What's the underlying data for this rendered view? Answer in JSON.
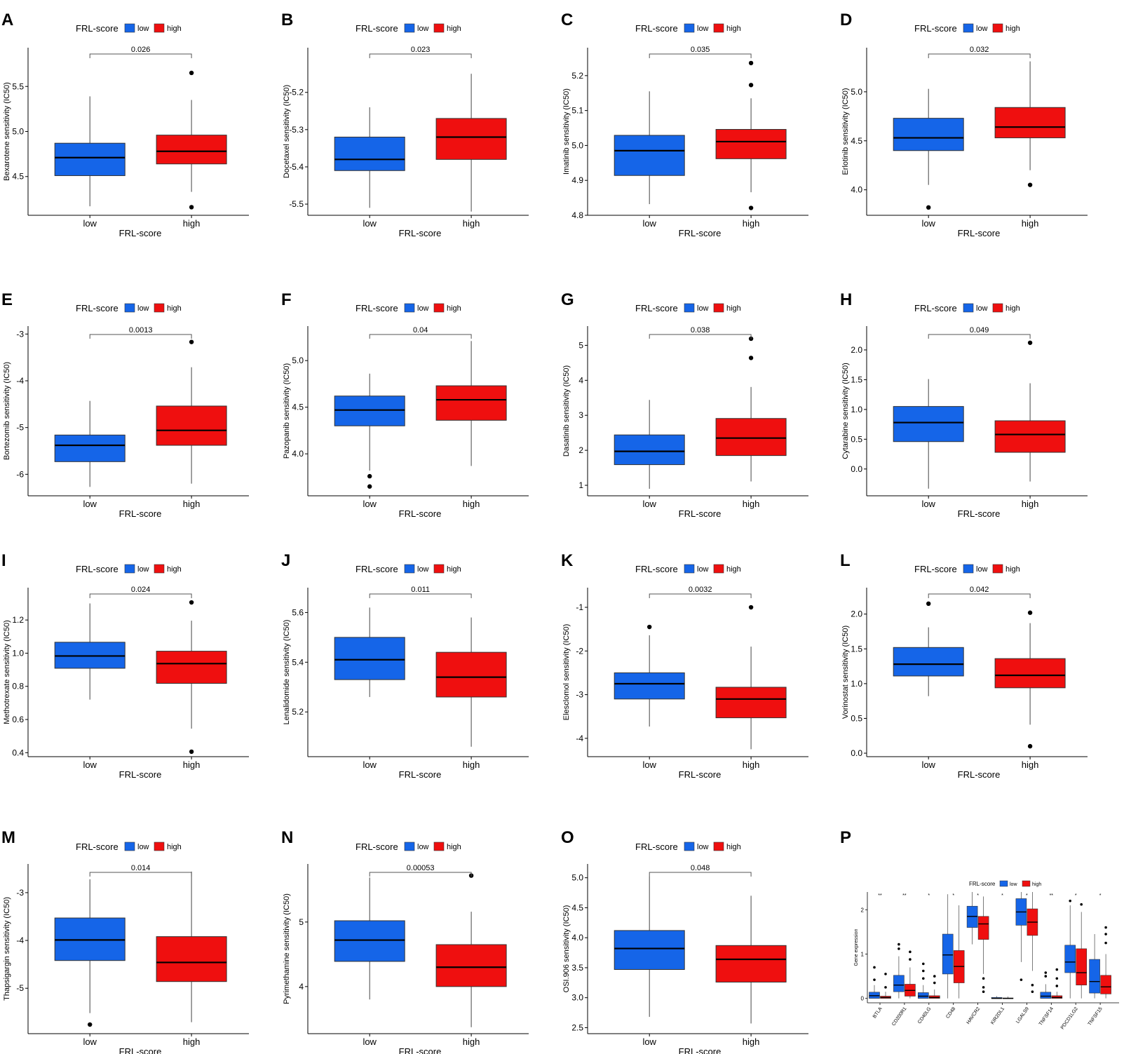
{
  "colors": {
    "low": "#1565e8",
    "high": "#ef0f0f"
  },
  "legend": {
    "title": "FRL-score",
    "labels": [
      "low",
      "high"
    ]
  },
  "chart_data": [
    {
      "panel": "A",
      "type": "box",
      "ylabel": "Bexarotene sensitivity (IC50)",
      "xlabel": "FRL-score",
      "categories": [
        "low",
        "high"
      ],
      "pvalue": "0.026",
      "ylim": [
        4.07,
        5.93
      ],
      "yticks": [
        "4.5",
        "5.0",
        "5.5"
      ],
      "boxes": [
        {
          "group": "low",
          "q1": 4.51,
          "median": 4.71,
          "q3": 4.87,
          "wlow": 4.17,
          "whigh": 5.39,
          "outliers": []
        },
        {
          "group": "high",
          "q1": 4.64,
          "median": 4.78,
          "q3": 4.96,
          "wlow": 4.33,
          "whigh": 5.35,
          "outliers": [
            5.65,
            4.16
          ]
        }
      ]
    },
    {
      "panel": "B",
      "type": "box",
      "ylabel": "Docetaxel sensitivity (IC50)",
      "xlabel": "FRL-score",
      "categories": [
        "low",
        "high"
      ],
      "pvalue": "0.023",
      "ylim": [
        -5.53,
        -5.08
      ],
      "yticks": [
        "-5.5",
        "-5.4",
        "-5.3",
        "-5.2"
      ],
      "boxes": [
        {
          "group": "low",
          "q1": -5.41,
          "median": -5.38,
          "q3": -5.32,
          "wlow": -5.51,
          "whigh": -5.24,
          "outliers": []
        },
        {
          "group": "high",
          "q1": -5.38,
          "median": -5.32,
          "q3": -5.27,
          "wlow": -5.52,
          "whigh": -5.15,
          "outliers": []
        }
      ]
    },
    {
      "panel": "C",
      "type": "box",
      "ylabel": "Imatinib sensitivity (IC50)",
      "xlabel": "FRL-score",
      "categories": [
        "low",
        "high"
      ],
      "pvalue": "0.035",
      "ylim": [
        4.8,
        5.28
      ],
      "yticks": [
        "4.8",
        "4.9",
        "5.0",
        "5.1",
        "5.2"
      ],
      "boxes": [
        {
          "group": "low",
          "q1": 4.914,
          "median": 4.985,
          "q3": 5.029,
          "wlow": 4.832,
          "whigh": 5.155,
          "outliers": []
        },
        {
          "group": "high",
          "q1": 4.962,
          "median": 5.011,
          "q3": 5.046,
          "wlow": 4.866,
          "whigh": 5.135,
          "outliers": [
            5.236,
            5.173,
            4.821
          ]
        }
      ]
    },
    {
      "panel": "D",
      "type": "box",
      "ylabel": "Erlotinib sensitivity (IC50)",
      "xlabel": "FRL-score",
      "categories": [
        "low",
        "high"
      ],
      "pvalue": "0.032",
      "ylim": [
        3.74,
        5.45
      ],
      "yticks": [
        "4.0",
        "4.5",
        "5.0"
      ],
      "boxes": [
        {
          "group": "low",
          "q1": 4.4,
          "median": 4.53,
          "q3": 4.73,
          "wlow": 4.05,
          "whigh": 5.03,
          "outliers": [
            3.82
          ]
        },
        {
          "group": "high",
          "q1": 4.53,
          "median": 4.64,
          "q3": 4.84,
          "wlow": 4.2,
          "whigh": 5.31,
          "outliers": [
            4.05
          ]
        }
      ]
    },
    {
      "panel": "E",
      "type": "box",
      "ylabel": "Bortezomib sensitivity (IC50)",
      "xlabel": "FRL-score",
      "categories": [
        "low",
        "high"
      ],
      "pvalue": "0.0013",
      "ylim": [
        -6.46,
        -2.83
      ],
      "yticks": [
        "-6",
        "-5",
        "-4",
        "-3"
      ],
      "boxes": [
        {
          "group": "low",
          "q1": -5.73,
          "median": -5.38,
          "q3": -5.16,
          "wlow": -6.27,
          "whigh": -4.43,
          "outliers": []
        },
        {
          "group": "high",
          "q1": -5.38,
          "median": -5.06,
          "q3": -4.54,
          "wlow": -6.2,
          "whigh": -3.71,
          "outliers": [
            -3.17
          ]
        }
      ]
    },
    {
      "panel": "F",
      "type": "box",
      "ylabel": "Pazopanib sensitivity (IC50)",
      "xlabel": "FRL-score",
      "categories": [
        "low",
        "high"
      ],
      "pvalue": "0.04",
      "ylim": [
        3.55,
        5.37
      ],
      "yticks": [
        "4.0",
        "4.5",
        "5.0"
      ],
      "boxes": [
        {
          "group": "low",
          "q1": 4.3,
          "median": 4.47,
          "q3": 4.62,
          "wlow": 3.82,
          "whigh": 4.86,
          "outliers": [
            3.76,
            3.65
          ]
        },
        {
          "group": "high",
          "q1": 4.36,
          "median": 4.58,
          "q3": 4.73,
          "wlow": 3.87,
          "whigh": 5.21,
          "outliers": []
        }
      ]
    },
    {
      "panel": "G",
      "type": "box",
      "ylabel": "Dasatinib sensitivity (IC50)",
      "xlabel": "FRL-score",
      "categories": [
        "low",
        "high"
      ],
      "pvalue": "0.038",
      "ylim": [
        0.7,
        5.55
      ],
      "yticks": [
        "1",
        "2",
        "3",
        "4",
        "5"
      ],
      "boxes": [
        {
          "group": "low",
          "q1": 1.59,
          "median": 1.97,
          "q3": 2.44,
          "wlow": 0.9,
          "whigh": 3.44,
          "outliers": []
        },
        {
          "group": "high",
          "q1": 1.85,
          "median": 2.35,
          "q3": 2.91,
          "wlow": 1.11,
          "whigh": 3.81,
          "outliers": [
            5.19,
            4.64
          ]
        }
      ]
    },
    {
      "panel": "H",
      "type": "box",
      "ylabel": "Cytarabine sensitivity (IC50)",
      "xlabel": "FRL-score",
      "categories": [
        "low",
        "high"
      ],
      "pvalue": "0.049",
      "ylim": [
        -0.45,
        2.4
      ],
      "yticks": [
        "0.0",
        "0.5",
        "1.0",
        "1.5",
        "2.0"
      ],
      "boxes": [
        {
          "group": "low",
          "q1": 0.46,
          "median": 0.78,
          "q3": 1.05,
          "wlow": -0.33,
          "whigh": 1.51,
          "outliers": []
        },
        {
          "group": "high",
          "q1": 0.28,
          "median": 0.58,
          "q3": 0.81,
          "wlow": -0.21,
          "whigh": 1.44,
          "outliers": [
            2.12
          ]
        }
      ]
    },
    {
      "panel": "I",
      "type": "box",
      "ylabel": "Methotrexate sensitivity (IC50)",
      "xlabel": "FRL-score",
      "categories": [
        "low",
        "high"
      ],
      "pvalue": "0.024",
      "ylim": [
        0.376,
        1.395
      ],
      "yticks": [
        "0.4",
        "0.6",
        "0.8",
        "1.0",
        "1.2"
      ],
      "boxes": [
        {
          "group": "low",
          "q1": 0.909,
          "median": 0.983,
          "q3": 1.066,
          "wlow": 0.72,
          "whigh": 1.3,
          "outliers": []
        },
        {
          "group": "high",
          "q1": 0.818,
          "median": 0.937,
          "q3": 1.012,
          "wlow": 0.545,
          "whigh": 1.196,
          "outliers": [
            1.306,
            0.406
          ]
        }
      ]
    },
    {
      "panel": "J",
      "type": "box",
      "ylabel": "Lenalidomide sensitivity (IC50)",
      "xlabel": "FRL-score",
      "categories": [
        "low",
        "high"
      ],
      "pvalue": "0.011",
      "ylim": [
        5.02,
        5.7
      ],
      "yticks": [
        "5.2",
        "5.4",
        "5.6"
      ],
      "boxes": [
        {
          "group": "low",
          "q1": 5.33,
          "median": 5.41,
          "q3": 5.5,
          "wlow": 5.26,
          "whigh": 5.62,
          "outliers": []
        },
        {
          "group": "high",
          "q1": 5.26,
          "median": 5.34,
          "q3": 5.44,
          "wlow": 5.06,
          "whigh": 5.58,
          "outliers": []
        }
      ]
    },
    {
      "panel": "K",
      "type": "box",
      "ylabel": "Elesclomol sensitivity (IC50)",
      "xlabel": "FRL-score",
      "categories": [
        "low",
        "high"
      ],
      "pvalue": "0.0032",
      "ylim": [
        -4.42,
        -0.55
      ],
      "yticks": [
        "-4",
        "-3",
        "-2",
        "-1"
      ],
      "boxes": [
        {
          "group": "low",
          "q1": -3.1,
          "median": -2.75,
          "q3": -2.5,
          "wlow": -3.73,
          "whigh": -1.64,
          "outliers": [
            -1.45
          ]
        },
        {
          "group": "high",
          "q1": -3.53,
          "median": -3.1,
          "q3": -2.83,
          "wlow": -4.25,
          "whigh": -1.9,
          "outliers": [
            -1.0
          ]
        }
      ]
    },
    {
      "panel": "L",
      "type": "box",
      "ylabel": "Vorinostat sensitivity (IC50)",
      "xlabel": "FRL-score",
      "categories": [
        "low",
        "high"
      ],
      "pvalue": "0.042",
      "ylim": [
        -0.05,
        2.38
      ],
      "yticks": [
        "0.0",
        "0.5",
        "1.0",
        "1.5",
        "2.0"
      ],
      "boxes": [
        {
          "group": "low",
          "q1": 1.11,
          "median": 1.28,
          "q3": 1.52,
          "wlow": 0.82,
          "whigh": 1.81,
          "outliers": [
            2.15
          ]
        },
        {
          "group": "high",
          "q1": 0.94,
          "median": 1.12,
          "q3": 1.36,
          "wlow": 0.41,
          "whigh": 1.87,
          "outliers": [
            2.02,
            0.1
          ]
        }
      ]
    },
    {
      "panel": "M",
      "type": "box",
      "ylabel": "Thapsigargin sensitivity (IC50)",
      "xlabel": "FRL-score",
      "categories": [
        "low",
        "high"
      ],
      "pvalue": "0.014",
      "ylim": [
        -5.95,
        -2.4
      ],
      "yticks": [
        "-5",
        "-4",
        "-3"
      ],
      "boxes": [
        {
          "group": "low",
          "q1": -4.42,
          "median": -3.99,
          "q3": -3.53,
          "wlow": -5.52,
          "whigh": -2.72,
          "outliers": [
            -5.76
          ]
        },
        {
          "group": "high",
          "q1": -4.86,
          "median": -4.46,
          "q3": -3.92,
          "wlow": -5.71,
          "whigh": -2.56,
          "outliers": []
        }
      ]
    },
    {
      "panel": "N",
      "type": "box",
      "ylabel": "Pyrimethamine sensitivity (IC50)",
      "xlabel": "FRL-score",
      "categories": [
        "low",
        "high"
      ],
      "pvalue": "0.00053",
      "ylim": [
        3.27,
        5.9
      ],
      "yticks": [
        "4",
        "5"
      ],
      "boxes": [
        {
          "group": "low",
          "q1": 4.39,
          "median": 4.72,
          "q3": 5.02,
          "wlow": 3.8,
          "whigh": 5.69,
          "outliers": []
        },
        {
          "group": "high",
          "q1": 4.0,
          "median": 4.3,
          "q3": 4.65,
          "wlow": 3.37,
          "whigh": 5.16,
          "outliers": [
            5.72
          ]
        }
      ]
    },
    {
      "panel": "O",
      "type": "box",
      "ylabel": "OSI.906 sensitivity (IC50)",
      "xlabel": "FRL-score",
      "categories": [
        "low",
        "high"
      ],
      "pvalue": "0.048",
      "ylim": [
        2.4,
        5.23
      ],
      "yticks": [
        "2.5",
        "3.0",
        "3.5",
        "4.0",
        "4.5",
        "5.0"
      ],
      "boxes": [
        {
          "group": "low",
          "q1": 3.47,
          "median": 3.82,
          "q3": 4.12,
          "wlow": 2.68,
          "whigh": 5.02,
          "outliers": []
        },
        {
          "group": "high",
          "q1": 3.26,
          "median": 3.64,
          "q3": 3.87,
          "wlow": 2.57,
          "whigh": 4.7,
          "outliers": []
        }
      ]
    },
    {
      "panel": "P",
      "type": "grouped-box",
      "ylabel": "Gene expression",
      "xlabel": "",
      "pvalue": "",
      "ylim": [
        -0.1,
        2.4
      ],
      "yticks": [
        "0",
        "1",
        "2"
      ],
      "genes": [
        {
          "name": "BTLA",
          "sig": "**",
          "low": {
            "q1": 0.0,
            "median": 0.06,
            "q3": 0.14,
            "wlow": 0.0,
            "whigh": 0.3,
            "outliers": [
              0.42,
              0.7
            ]
          },
          "high": {
            "q1": 0.0,
            "median": 0.02,
            "q3": 0.05,
            "wlow": 0.0,
            "whigh": 0.15,
            "outliers": [
              0.25,
              0.55
            ]
          }
        },
        {
          "name": "CD200R1",
          "sig": "**",
          "low": {
            "q1": 0.15,
            "median": 0.3,
            "q3": 0.52,
            "wlow": 0.0,
            "whigh": 0.95,
            "outliers": [
              1.12,
              1.22
            ]
          },
          "high": {
            "q1": 0.05,
            "median": 0.18,
            "q3": 0.32,
            "wlow": 0.0,
            "whigh": 0.7,
            "outliers": [
              0.88,
              1.05
            ]
          }
        },
        {
          "name": "CD40LG",
          "sig": "*",
          "low": {
            "q1": 0.0,
            "median": 0.05,
            "q3": 0.13,
            "wlow": 0.0,
            "whigh": 0.3,
            "outliers": [
              0.45,
              0.62,
              0.78
            ]
          },
          "high": {
            "q1": 0.0,
            "median": 0.02,
            "q3": 0.06,
            "wlow": 0.0,
            "whigh": 0.2,
            "outliers": [
              0.35,
              0.5
            ]
          }
        },
        {
          "name": "CD48",
          "sig": "*",
          "low": {
            "q1": 0.55,
            "median": 0.98,
            "q3": 1.45,
            "wlow": 0.0,
            "whigh": 2.35,
            "outliers": []
          },
          "high": {
            "q1": 0.35,
            "median": 0.72,
            "q3": 1.08,
            "wlow": 0.0,
            "whigh": 2.1,
            "outliers": []
          }
        },
        {
          "name": "HAVCR2",
          "sig": "*",
          "low": {
            "q1": 1.6,
            "median": 1.85,
            "q3": 2.08,
            "wlow": 1.22,
            "whigh": 2.4,
            "outliers": []
          },
          "high": {
            "q1": 1.33,
            "median": 1.68,
            "q3": 1.85,
            "wlow": 0.55,
            "whigh": 2.3,
            "outliers": [
              0.45,
              0.25,
              0.15
            ]
          }
        },
        {
          "name": "KIR2DL1",
          "sig": "*",
          "low": {
            "q1": 0.0,
            "median": 0.0,
            "q3": 0.02,
            "wlow": 0.0,
            "whigh": 0.05,
            "outliers": []
          },
          "high": {
            "q1": 0.0,
            "median": 0.0,
            "q3": 0.01,
            "wlow": 0.0,
            "whigh": 0.04,
            "outliers": []
          }
        },
        {
          "name": "LGALS9",
          "sig": "*",
          "low": {
            "q1": 1.65,
            "median": 1.95,
            "q3": 2.25,
            "wlow": 0.82,
            "whigh": 2.4,
            "outliers": [
              0.42
            ]
          },
          "high": {
            "q1": 1.42,
            "median": 1.72,
            "q3": 2.02,
            "wlow": 0.62,
            "whigh": 2.4,
            "outliers": [
              0.3,
              0.15
            ]
          }
        },
        {
          "name": "TNFSF14",
          "sig": "**",
          "low": {
            "q1": 0.0,
            "median": 0.05,
            "q3": 0.14,
            "wlow": 0.0,
            "whigh": 0.32,
            "outliers": [
              0.5,
              0.58
            ]
          },
          "high": {
            "q1": 0.0,
            "median": 0.02,
            "q3": 0.06,
            "wlow": 0.0,
            "whigh": 0.15,
            "outliers": [
              0.28,
              0.45,
              0.65
            ]
          }
        },
        {
          "name": "PDCD1LG2",
          "sig": "*",
          "low": {
            "q1": 0.58,
            "median": 0.82,
            "q3": 1.2,
            "wlow": 0.0,
            "whigh": 2.1,
            "outliers": [
              2.2
            ]
          },
          "high": {
            "q1": 0.3,
            "median": 0.58,
            "q3": 1.12,
            "wlow": 0.0,
            "whigh": 1.95,
            "outliers": [
              2.12
            ]
          }
        },
        {
          "name": "TNFSF15",
          "sig": "*",
          "low": {
            "q1": 0.12,
            "median": 0.38,
            "q3": 0.88,
            "wlow": 0.0,
            "whigh": 1.45,
            "outliers": []
          },
          "high": {
            "q1": 0.1,
            "median": 0.26,
            "q3": 0.52,
            "wlow": 0.0,
            "whigh": 1.0,
            "outliers": [
              1.25,
              1.45,
              1.6
            ]
          }
        }
      ]
    }
  ]
}
